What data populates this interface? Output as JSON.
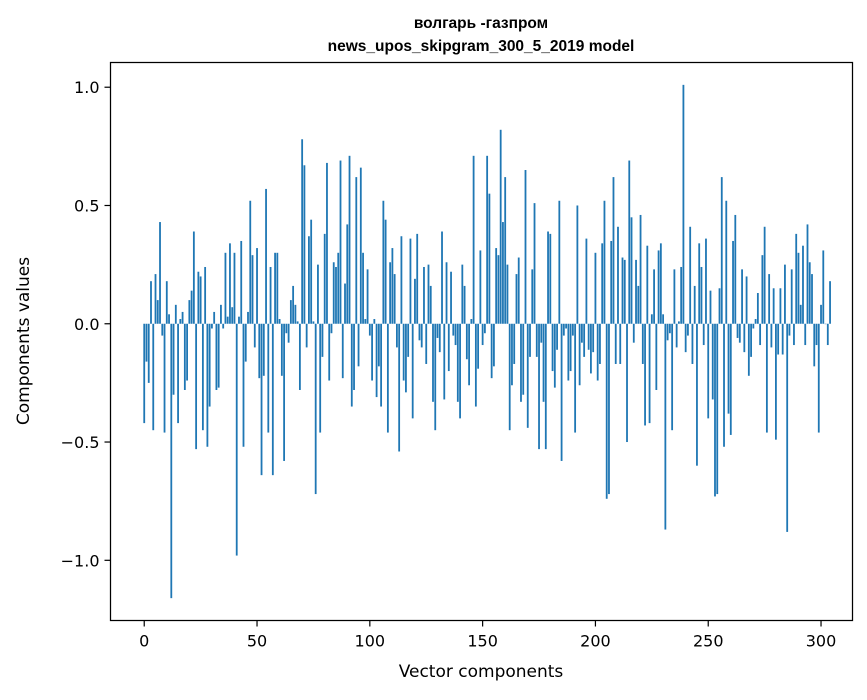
{
  "chart_data": {
    "type": "bar",
    "title_line1": "волгарь -газпром",
    "title_line2": "news_upos_skipgram_300_5_2019 model",
    "xlabel": "Vector components",
    "ylabel": "Components values",
    "xlim": [
      -14.95,
      313.95
    ],
    "ylim": [
      -1.2545,
      1.1045
    ],
    "x_ticks": [
      0,
      50,
      100,
      150,
      200,
      250,
      300
    ],
    "x_tick_labels": [
      "0",
      "50",
      "100",
      "150",
      "200",
      "250",
      "300"
    ],
    "y_ticks": [
      -1.0,
      -0.5,
      0.0,
      0.5,
      1.0
    ],
    "y_tick_labels": [
      "−1.0",
      "−0.5",
      "0.0",
      "0.5",
      "1.0"
    ],
    "bar_color": "#1f77b4",
    "grid": false,
    "values": [
      -0.42,
      -0.16,
      -0.25,
      0.18,
      -0.45,
      0.21,
      0.1,
      0.43,
      -0.05,
      -0.46,
      0.18,
      0.04,
      -1.16,
      -0.3,
      0.08,
      -0.42,
      0.02,
      0.05,
      -0.28,
      -0.24,
      0.1,
      0.14,
      0.39,
      -0.53,
      0.22,
      0.2,
      -0.45,
      0.24,
      -0.52,
      -0.35,
      -0.02,
      0.05,
      -0.28,
      -0.27,
      0.08,
      -0.02,
      0.3,
      0.03,
      0.34,
      0.07,
      0.3,
      -0.98,
      0.03,
      0.35,
      -0.52,
      -0.16,
      0.05,
      0.52,
      0.29,
      -0.1,
      0.32,
      -0.23,
      -0.64,
      -0.22,
      0.57,
      -0.46,
      0.24,
      -0.64,
      0.3,
      0.3,
      0.02,
      -0.22,
      -0.58,
      -0.04,
      -0.08,
      0.1,
      0.16,
      0.08,
      0.01,
      -0.28,
      0.78,
      0.67,
      -0.1,
      0.37,
      0.44,
      0.01,
      -0.72,
      0.25,
      -0.46,
      -0.14,
      0.38,
      0.68,
      -0.24,
      -0.04,
      0.26,
      0.24,
      0.3,
      0.69,
      -0.23,
      0.17,
      0.42,
      0.71,
      -0.35,
      -0.28,
      0.62,
      -0.18,
      0.66,
      0.3,
      0.02,
      0.23,
      -0.05,
      -0.24,
      0.02,
      -0.31,
      -0.18,
      -0.35,
      0.52,
      0.44,
      -0.46,
      0.26,
      0.32,
      0.21,
      -0.1,
      -0.54,
      0.37,
      -0.24,
      -0.29,
      -0.14,
      0.36,
      -0.4,
      0.19,
      0.38,
      -0.07,
      -0.1,
      0.24,
      -0.17,
      0.25,
      0.16,
      -0.33,
      -0.45,
      -0.06,
      -0.12,
      0.39,
      -0.32,
      0.26,
      -0.2,
      0.22,
      -0.05,
      -0.09,
      -0.33,
      -0.4,
      0.25,
      0.16,
      -0.15,
      -0.26,
      0.02,
      0.71,
      -0.35,
      -0.19,
      0.31,
      -0.09,
      -0.04,
      0.71,
      0.55,
      -0.23,
      -0.18,
      0.32,
      0.29,
      0.82,
      0.43,
      0.62,
      0.25,
      -0.45,
      -0.26,
      -0.17,
      0.21,
      0.28,
      -0.33,
      -0.3,
      0.65,
      -0.44,
      -0.14,
      0.23,
      0.51,
      -0.14,
      -0.53,
      -0.08,
      -0.33,
      -0.53,
      0.39,
      0.38,
      -0.2,
      -0.27,
      -0.11,
      0.52,
      -0.58,
      -0.05,
      -0.02,
      -0.24,
      -0.2,
      -0.05,
      -0.46,
      0.5,
      -0.26,
      -0.08,
      -0.14,
      0.36,
      -0.11,
      -0.21,
      -0.12,
      0.3,
      -0.24,
      -0.17,
      0.34,
      0.52,
      -0.74,
      -0.72,
      0.35,
      0.62,
      -0.17,
      0.41,
      -0.17,
      0.28,
      0.27,
      -0.5,
      0.69,
      0.45,
      -0.08,
      0.27,
      0.16,
      0.46,
      -0.17,
      -0.43,
      0.33,
      -0.42,
      0.04,
      0.23,
      -0.28,
      0.31,
      0.34,
      0.04,
      -0.87,
      -0.07,
      -0.04,
      -0.45,
      0.23,
      -0.1,
      0.01,
      0.24,
      1.01,
      -0.12,
      -0.05,
      0.41,
      -0.17,
      0.16,
      -0.6,
      0.34,
      0.24,
      -0.09,
      0.36,
      -0.4,
      0.14,
      -0.32,
      -0.73,
      -0.72,
      0.15,
      0.62,
      -0.52,
      0.52,
      -0.38,
      -0.47,
      0.35,
      0.46,
      -0.06,
      -0.08,
      0.23,
      -0.12,
      0.2,
      -0.22,
      -0.14,
      -0.02,
      0.02,
      0.13,
      -0.09,
      0.29,
      0.41,
      -0.46,
      0.21,
      -0.1,
      0.15,
      -0.49,
      -0.13,
      0.15,
      -0.13,
      0.25,
      -0.88,
      -0.05,
      0.23,
      -0.09,
      0.38,
      0.3,
      0.08,
      0.33,
      -0.09,
      0.42,
      0.26,
      0.21,
      -0.18,
      -0.09,
      -0.46,
      0.08,
      0.31,
      0.0,
      -0.09,
      0.18
    ]
  }
}
